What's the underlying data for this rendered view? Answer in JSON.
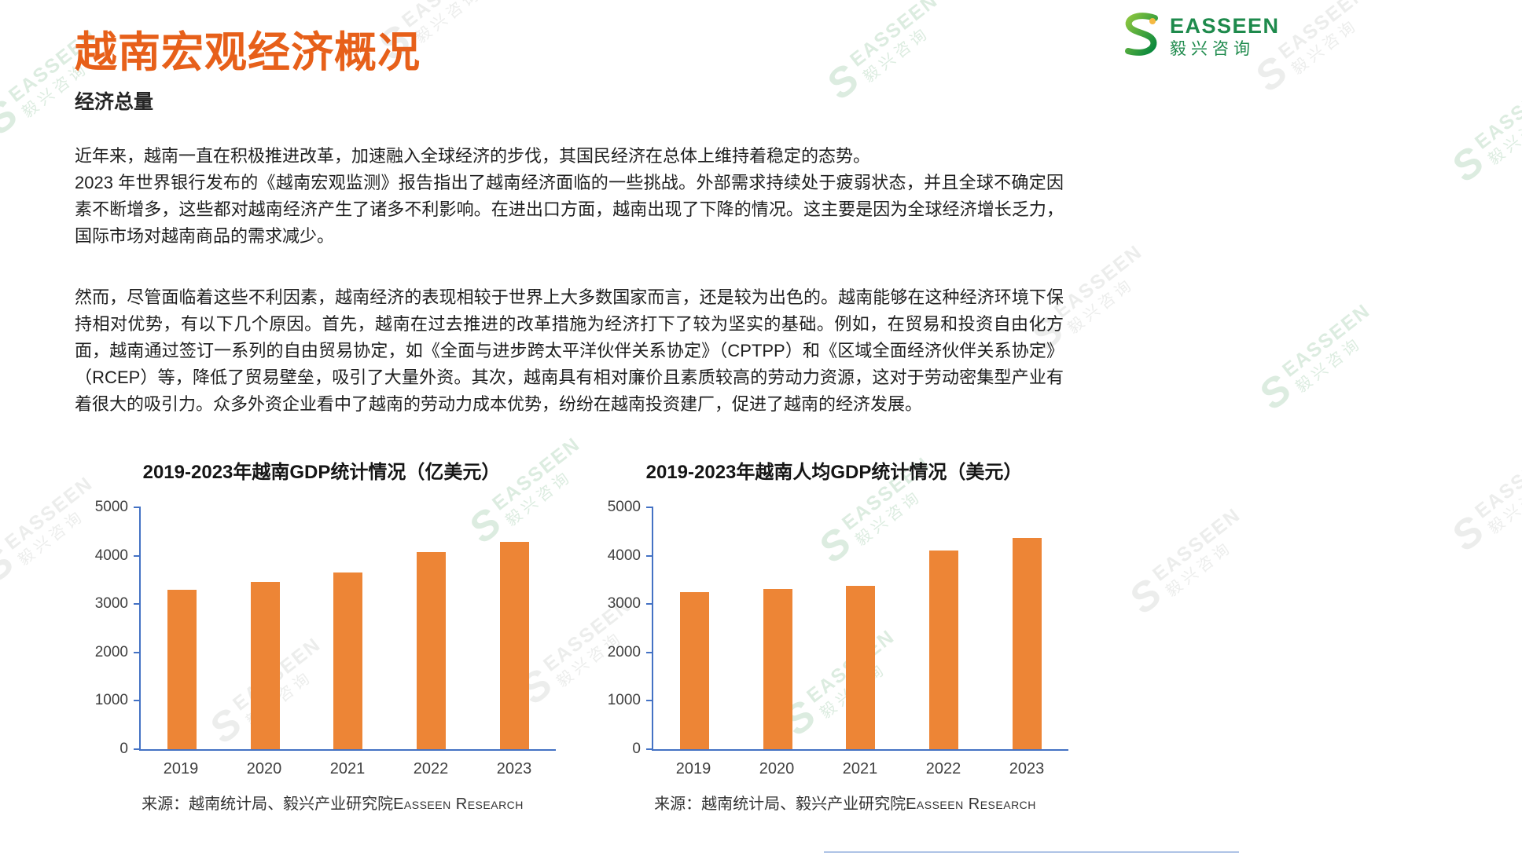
{
  "header": {
    "title": "越南宏观经济概况",
    "section_heading": "经济总量"
  },
  "logo": {
    "brand_en": "EASSEEN",
    "brand_cn": "毅兴咨询"
  },
  "watermark": {
    "brand_en": "EASSEEN",
    "brand_cn": "毅兴咨询"
  },
  "body": {
    "paragraph1_line1": "近年来，越南一直在积极推进改革，加速融入全球经济的步伐，其国民经济在总体上维持着稳定的态势。",
    "paragraph1_rest": "2023 年世界银行发布的《越南宏观监测》报告指出了越南经济面临的一些挑战。外部需求持续处于疲弱状态，并且全球不确定因素不断增多，这些都对越南经济产生了诸多不利影响。在进出口方面，越南出现了下降的情况。这主要是因为全球经济增长乏力，国际市场对越南商品的需求减少。",
    "paragraph2": "然而，尽管面临着这些不利因素，越南经济的表现相较于世界上大多数国家而言，还是较为出色的。越南能够在这种经济环境下保持相对优势，有以下几个原因。首先，越南在过去推进的改革措施为经济打下了较为坚实的基础。例如，在贸易和投资自由化方面，越南通过签订一系列的自由贸易协定，如《全面与进步跨太平洋伙伴关系协定》（CPTPP）和《区域全面经济伙伴关系协定》（RCEP）等，降低了贸易壁垒，吸引了大量外资。其次，越南具有相对廉价且素质较高的劳动力资源，这对于劳动密集型产业有着很大的吸引力。众多外资企业看中了越南的劳动力成本优势，纷纷在越南投资建厂，促进了越南的经济发展。"
  },
  "colors": {
    "title_orange": "#E7601A",
    "bar_orange": "#ED8536",
    "axis_blue": "#4472C4",
    "logo_green": "#1E8A4C"
  },
  "chart_data": [
    {
      "type": "bar",
      "title": "2019-2023年越南GDP统计情况（亿美元）",
      "categories": [
        "2019",
        "2020",
        "2021",
        "2022",
        "2023"
      ],
      "values": [
        3300,
        3450,
        3650,
        4080,
        4290
      ],
      "xlabel": "",
      "ylabel": "",
      "ylim": [
        0,
        5000
      ],
      "yticks": [
        0,
        1000,
        2000,
        3000,
        4000,
        5000
      ],
      "grid": false,
      "legend": "none",
      "bar_color": "#ED8536",
      "source_prefix": "来源：越南统计局、毅兴产业研究院",
      "source_brand": "Easseen Research"
    },
    {
      "type": "bar",
      "title": "2019-2023年越南人均GDP统计情况（美元）",
      "categories": [
        "2019",
        "2020",
        "2021",
        "2022",
        "2023"
      ],
      "values": [
        3240,
        3310,
        3370,
        4110,
        4370
      ],
      "xlabel": "",
      "ylabel": "",
      "ylim": [
        0,
        5000
      ],
      "yticks": [
        0,
        1000,
        2000,
        3000,
        4000,
        5000
      ],
      "grid": false,
      "legend": "none",
      "bar_color": "#ED8536",
      "source_prefix": "来源：越南统计局、毅兴产业研究院",
      "source_brand": "Easseen Research"
    }
  ]
}
